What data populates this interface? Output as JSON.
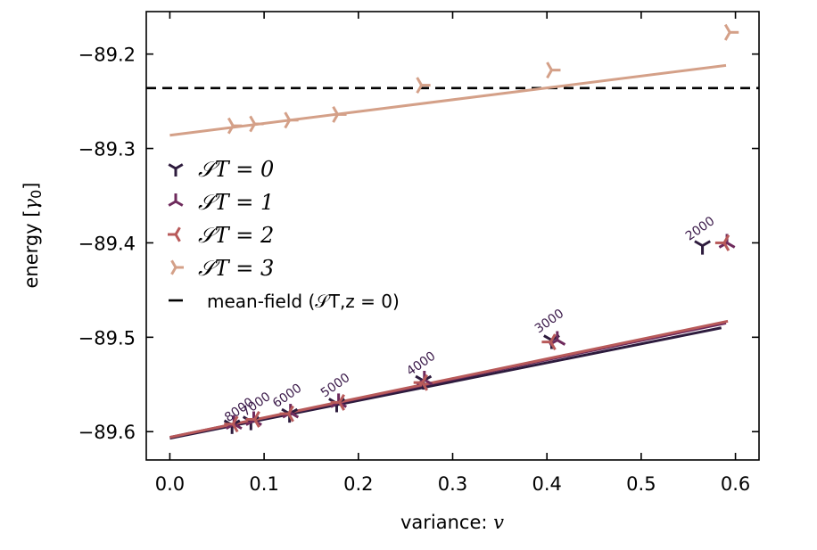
{
  "chart_data": {
    "type": "scatter",
    "xlabel": "variance: v",
    "ylabel": "energy [γ0]",
    "xlim": [
      -0.025,
      0.625
    ],
    "ylim": [
      -89.63,
      -89.155
    ],
    "xticks": [
      0.0,
      0.1,
      0.2,
      0.3,
      0.4,
      0.5,
      0.6
    ],
    "xtick_labels": [
      "0.0",
      "0.1",
      "0.2",
      "0.3",
      "0.4",
      "0.5",
      "0.6"
    ],
    "yticks": [
      -89.6,
      -89.5,
      -89.4,
      -89.3,
      -89.2
    ],
    "ytick_labels": [
      "−89.6",
      "−89.5",
      "−89.4",
      "−89.3",
      "−89.2"
    ],
    "legend_placement": "center-left",
    "series": [
      {
        "name": "S_T = 0",
        "legend_label": "𝒮T = 0",
        "color": "#2d1b3d",
        "rotation": 0,
        "points": [
          [
            0.066,
            -89.593
          ],
          [
            0.086,
            -89.589
          ],
          [
            0.127,
            -89.581
          ],
          [
            0.177,
            -89.57
          ],
          [
            0.269,
            -89.546
          ],
          [
            0.405,
            -89.503
          ],
          [
            0.565,
            -89.403
          ]
        ],
        "fit": [
          [
            0.0,
            -89.607
          ],
          [
            0.585,
            -89.49
          ]
        ]
      },
      {
        "name": "S_T = 1",
        "legend_label": "𝒮T = 1",
        "color": "#6e2a5c",
        "rotation": 180,
        "points": [
          [
            0.068,
            -89.592
          ],
          [
            0.089,
            -89.588
          ],
          [
            0.128,
            -89.58
          ],
          [
            0.179,
            -89.569
          ],
          [
            0.27,
            -89.545
          ],
          [
            0.411,
            -89.503
          ],
          [
            0.591,
            -89.4
          ]
        ],
        "fit": [
          [
            0.0,
            -89.606
          ],
          [
            0.59,
            -89.485
          ]
        ]
      },
      {
        "name": "S_T = 2",
        "legend_label": "𝒮T = 2",
        "color": "#b85a5a",
        "rotation": 90,
        "points": [
          [
            0.067,
            -89.592
          ],
          [
            0.09,
            -89.587
          ],
          [
            0.126,
            -89.581
          ],
          [
            0.18,
            -89.569
          ],
          [
            0.268,
            -89.548
          ],
          [
            0.404,
            -89.505
          ],
          [
            0.588,
            -89.4
          ]
        ],
        "fit": [
          [
            0.0,
            -89.606
          ],
          [
            0.592,
            -89.483
          ]
        ]
      },
      {
        "name": "S_T = 3",
        "legend_label": "𝒮T = 3",
        "color": "#d4a088",
        "rotation": 270,
        "points": [
          [
            0.067,
            -89.276
          ],
          [
            0.09,
            -89.274
          ],
          [
            0.127,
            -89.27
          ],
          [
            0.178,
            -89.264
          ],
          [
            0.267,
            -89.233
          ],
          [
            0.405,
            -89.217
          ],
          [
            0.594,
            -89.177
          ]
        ],
        "fit": [
          [
            0.0,
            -89.286
          ],
          [
            0.59,
            -89.212
          ]
        ]
      }
    ],
    "reference_line": {
      "name": "mean-field",
      "legend_label": "mean-field (𝒮T,z = 0)",
      "y": -89.236,
      "style": "dashed",
      "color": "#000000"
    },
    "annotations": [
      {
        "text": "8000",
        "x": 0.062,
        "y": -89.59
      },
      {
        "text": "7000",
        "x": 0.08,
        "y": -89.584
      },
      {
        "text": "6000",
        "x": 0.113,
        "y": -89.575
      },
      {
        "text": "5000",
        "x": 0.164,
        "y": -89.564
      },
      {
        "text": "4000",
        "x": 0.255,
        "y": -89.541
      },
      {
        "text": "3000",
        "x": 0.391,
        "y": -89.496
      },
      {
        "text": "2000",
        "x": 0.551,
        "y": -89.398
      }
    ]
  }
}
